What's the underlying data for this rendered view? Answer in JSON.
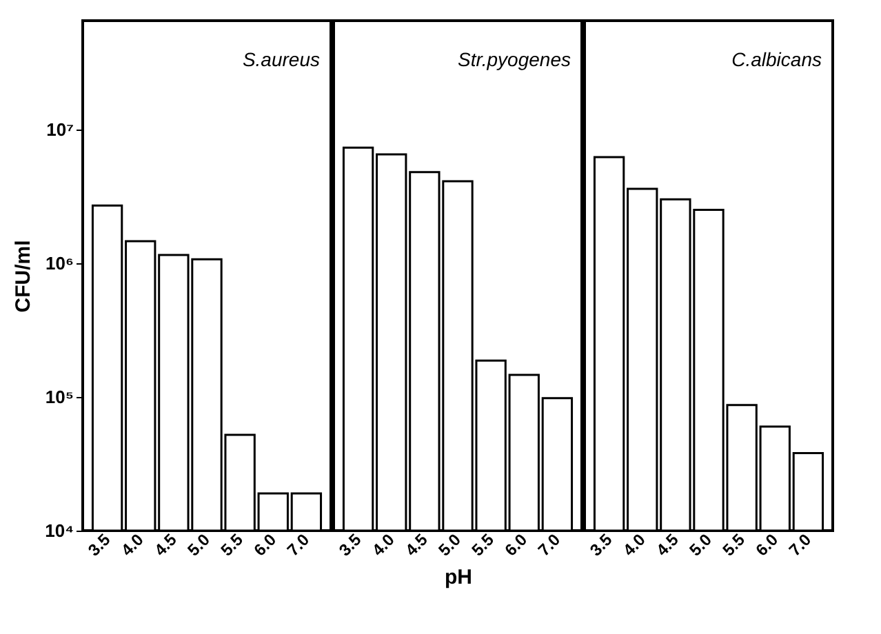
{
  "chart_data": [
    {
      "type": "bar",
      "annotations": [
        "S.aureus"
      ],
      "ylabel": "CFU/ml",
      "categories": [
        "3.5",
        "4.0",
        "4.5",
        "5.0",
        "5.5",
        "6.0",
        "7.0"
      ],
      "log": "y",
      "color": "#ffffff",
      "ylim": [
        10000,
        65000000
      ],
      "yticks": [
        {
          "value": 10000,
          "label": "10⁴"
        },
        {
          "value": 100000,
          "label": "10⁵"
        },
        {
          "value": 1000000,
          "label": "10⁶"
        },
        {
          "value": 10000000,
          "label": "10⁷"
        }
      ],
      "values": [
        2700000,
        1460000,
        1150000,
        1070000,
        52000,
        19000,
        19000
      ]
    },
    {
      "type": "bar",
      "annotations": [
        "Str.pyogenes"
      ],
      "xlabel": "pH",
      "categories": [
        "3.5",
        "4.0",
        "4.5",
        "5.0",
        "5.5",
        "6.0",
        "7.0"
      ],
      "log": "y",
      "color": "#ffffff",
      "ylim": [
        10000,
        65000000
      ],
      "tick_labels": "x",
      "values": [
        7300000,
        6500000,
        4800000,
        4100000,
        187000,
        146000,
        98000
      ]
    },
    {
      "type": "bar",
      "annotations": [
        "C.albicans"
      ],
      "categories": [
        "3.5",
        "4.0",
        "4.5",
        "5.0",
        "5.5",
        "6.0",
        "7.0"
      ],
      "log": "y",
      "color": "#ffffff",
      "ylim": [
        10000,
        65000000
      ],
      "tick_labels": "x",
      "values": [
        6200000,
        3600000,
        3000000,
        2500000,
        87000,
        60000,
        38000
      ]
    }
  ]
}
